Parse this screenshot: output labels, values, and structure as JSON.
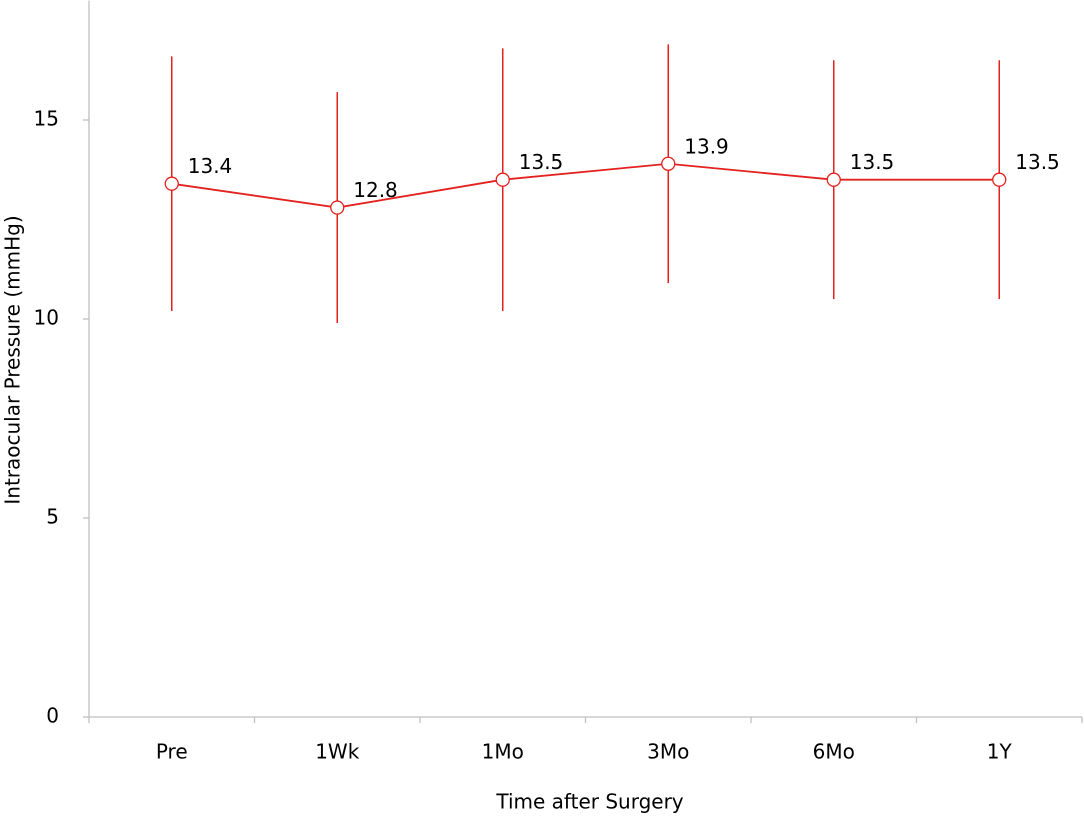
{
  "chart_data": {
    "type": "line",
    "x_label": "Time after Surgery",
    "y_label": "Intraocular Pressure (mmHg)",
    "categories": [
      "Pre",
      "1Wk",
      "1Mo",
      "3Mo",
      "6Mo",
      "1Y"
    ],
    "series": [
      {
        "color": "#e3211e",
        "values": [
          13.4,
          12.8,
          13.5,
          13.9,
          13.5,
          13.5
        ],
        "errors": [
          3.2,
          2.9,
          3.3,
          3.0,
          3.0,
          3.0
        ]
      }
    ],
    "ylim": [
      0,
      18
    ],
    "yticks": [
      0,
      5,
      10,
      15
    ],
    "grid": false
  }
}
